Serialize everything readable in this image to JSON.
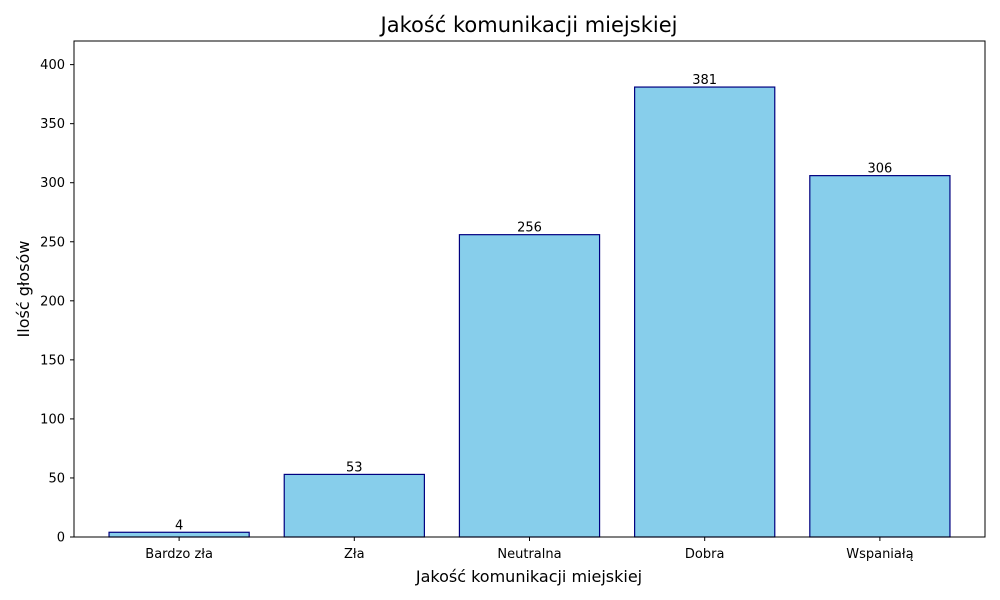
{
  "chart_data": {
    "type": "bar",
    "title": "Jakość komunikacji miejskiej",
    "xlabel": "Jakość komunikacji miejskiej",
    "ylabel": "Ilość głosów",
    "categories": [
      "Bardzo zła",
      "Zła",
      "Neutralna",
      "Dobra",
      "Wspaniałą"
    ],
    "values": [
      4,
      53,
      256,
      381,
      306
    ],
    "ylim": [
      0,
      420
    ],
    "yticks": [
      0,
      50,
      100,
      150,
      200,
      250,
      300,
      350,
      400
    ],
    "grid": false,
    "colors": {
      "bar_fill": "#87CEEB",
      "bar_edge": "#000080"
    }
  }
}
